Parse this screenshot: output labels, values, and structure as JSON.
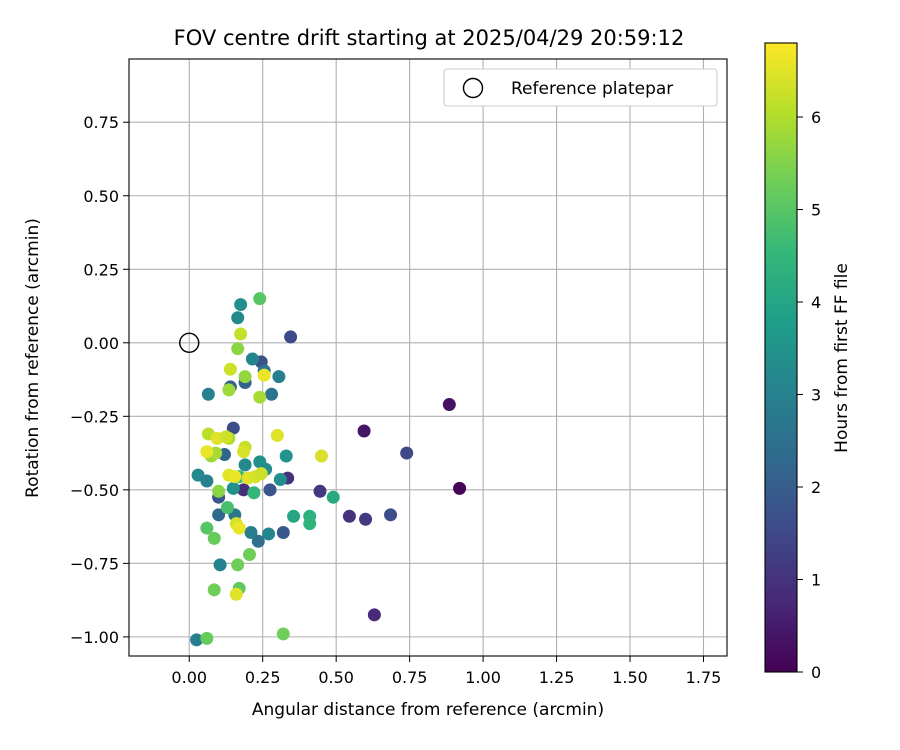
{
  "chart_data": {
    "type": "scatter",
    "title": "FOV centre drift starting at 2025/04/29 20:59:12",
    "xlabel": "Angular distance from reference (arcmin)",
    "ylabel": "Rotation from reference (arcmin)",
    "xlim": [
      -0.205,
      1.83
    ],
    "ylim": [
      -1.065,
      0.965
    ],
    "xticks": [
      0.0,
      0.25,
      0.5,
      0.75,
      1.0,
      1.25,
      1.5,
      1.75
    ],
    "xtick_labels": [
      "0.00",
      "0.25",
      "0.50",
      "0.75",
      "1.00",
      "1.25",
      "1.50",
      "1.75"
    ],
    "yticks": [
      0.75,
      0.5,
      0.25,
      0.0,
      -0.25,
      -0.5,
      -0.75,
      -1.0
    ],
    "ytick_labels": [
      "0.75",
      "0.50",
      "0.25",
      "0.00",
      "−0.25",
      "−0.50",
      "−0.75",
      "−1.00"
    ],
    "grid": true,
    "legend": {
      "placement": "top-right",
      "entries": [
        "Reference platepar"
      ]
    },
    "reference_point": {
      "x": 0.0,
      "y": 0.0,
      "marker": "open-circle"
    },
    "colorbar": {
      "label": "Hours from first FF file",
      "colormap": "viridis",
      "range": [
        0,
        6.8
      ],
      "ticks": [
        0,
        1,
        2,
        3,
        4,
        5,
        6
      ],
      "tick_labels": [
        "0",
        "1",
        "2",
        "3",
        "4",
        "5",
        "6"
      ]
    },
    "points": [
      {
        "x": 0.92,
        "y": -0.495,
        "c": 0.1
      },
      {
        "x": 0.885,
        "y": -0.21,
        "c": 0.3
      },
      {
        "x": 0.595,
        "y": -0.3,
        "c": 0.4
      },
      {
        "x": 0.63,
        "y": -0.925,
        "c": 0.8
      },
      {
        "x": 0.545,
        "y": -0.59,
        "c": 1.0
      },
      {
        "x": 0.6,
        "y": -0.6,
        "c": 1.2
      },
      {
        "x": 0.445,
        "y": -0.505,
        "c": 1.1
      },
      {
        "x": 0.74,
        "y": -0.375,
        "c": 1.5
      },
      {
        "x": 0.685,
        "y": -0.585,
        "c": 1.6
      },
      {
        "x": 0.345,
        "y": 0.02,
        "c": 1.5
      },
      {
        "x": 0.335,
        "y": -0.46,
        "c": 1.0
      },
      {
        "x": 0.185,
        "y": -0.5,
        "c": 0.9
      },
      {
        "x": 0.245,
        "y": -0.065,
        "c": 1.7
      },
      {
        "x": 0.15,
        "y": -0.29,
        "c": 1.6
      },
      {
        "x": 0.275,
        "y": -0.5,
        "c": 1.8
      },
      {
        "x": 0.32,
        "y": -0.645,
        "c": 1.9
      },
      {
        "x": 0.19,
        "y": -0.135,
        "c": 2.1
      },
      {
        "x": 0.14,
        "y": -0.15,
        "c": 2.0
      },
      {
        "x": 0.1,
        "y": -0.525,
        "c": 1.8
      },
      {
        "x": 0.1,
        "y": -0.585,
        "c": 2.3
      },
      {
        "x": 0.235,
        "y": -0.675,
        "c": 2.5
      },
      {
        "x": 0.12,
        "y": -0.38,
        "c": 2.2
      },
      {
        "x": 0.255,
        "y": -0.095,
        "c": 2.6
      },
      {
        "x": 0.28,
        "y": -0.175,
        "c": 2.6
      },
      {
        "x": 0.305,
        "y": -0.115,
        "c": 2.9
      },
      {
        "x": 0.065,
        "y": -0.175,
        "c": 3.0
      },
      {
        "x": 0.155,
        "y": -0.585,
        "c": 2.7
      },
      {
        "x": 0.21,
        "y": -0.645,
        "c": 2.9
      },
      {
        "x": 0.165,
        "y": 0.085,
        "c": 3.2
      },
      {
        "x": 0.175,
        "y": 0.13,
        "c": 3.4
      },
      {
        "x": 0.215,
        "y": -0.055,
        "c": 3.1
      },
      {
        "x": 0.27,
        "y": -0.65,
        "c": 3.1
      },
      {
        "x": 0.105,
        "y": -0.755,
        "c": 3.0
      },
      {
        "x": 0.025,
        "y": -1.01,
        "c": 2.9
      },
      {
        "x": 0.03,
        "y": -0.45,
        "c": 3.2
      },
      {
        "x": 0.06,
        "y": -0.47,
        "c": 3.0
      },
      {
        "x": 0.33,
        "y": -0.385,
        "c": 3.5
      },
      {
        "x": 0.31,
        "y": -0.465,
        "c": 3.3
      },
      {
        "x": 0.24,
        "y": -0.405,
        "c": 3.4
      },
      {
        "x": 0.15,
        "y": -0.495,
        "c": 3.4
      },
      {
        "x": 0.26,
        "y": -0.43,
        "c": 3.3
      },
      {
        "x": 0.19,
        "y": -0.415,
        "c": 3.2
      },
      {
        "x": 0.355,
        "y": -0.59,
        "c": 4.0
      },
      {
        "x": 0.41,
        "y": -0.59,
        "c": 4.3
      },
      {
        "x": 0.41,
        "y": -0.615,
        "c": 4.4
      },
      {
        "x": 0.49,
        "y": -0.525,
        "c": 4.1
      },
      {
        "x": 0.22,
        "y": -0.51,
        "c": 4.5
      },
      {
        "x": 0.17,
        "y": -0.455,
        "c": 4.6
      },
      {
        "x": 0.13,
        "y": -0.56,
        "c": 4.8
      },
      {
        "x": 0.06,
        "y": -0.63,
        "c": 5.0
      },
      {
        "x": 0.085,
        "y": -0.665,
        "c": 5.2
      },
      {
        "x": 0.165,
        "y": -0.755,
        "c": 5.3
      },
      {
        "x": 0.205,
        "y": -0.72,
        "c": 5.3
      },
      {
        "x": 0.17,
        "y": -0.835,
        "c": 5.1
      },
      {
        "x": 0.085,
        "y": -0.84,
        "c": 5.3
      },
      {
        "x": 0.06,
        "y": -1.005,
        "c": 5.2
      },
      {
        "x": 0.32,
        "y": -0.99,
        "c": 5.3
      },
      {
        "x": 0.24,
        "y": 0.15,
        "c": 5.0
      },
      {
        "x": 0.165,
        "y": -0.02,
        "c": 5.6
      },
      {
        "x": 0.19,
        "y": -0.115,
        "c": 5.7
      },
      {
        "x": 0.135,
        "y": -0.16,
        "c": 5.8
      },
      {
        "x": 0.24,
        "y": -0.185,
        "c": 5.9
      },
      {
        "x": 0.1,
        "y": -0.505,
        "c": 5.6
      },
      {
        "x": 0.075,
        "y": -0.385,
        "c": 5.8
      },
      {
        "x": 0.09,
        "y": -0.375,
        "c": 5.9
      },
      {
        "x": 0.135,
        "y": -0.325,
        "c": 6.0
      },
      {
        "x": 0.065,
        "y": -0.31,
        "c": 6.1
      },
      {
        "x": 0.175,
        "y": 0.03,
        "c": 6.2
      },
      {
        "x": 0.14,
        "y": -0.09,
        "c": 6.3
      },
      {
        "x": 0.19,
        "y": -0.355,
        "c": 6.2
      },
      {
        "x": 0.185,
        "y": -0.37,
        "c": 6.4
      },
      {
        "x": 0.095,
        "y": -0.325,
        "c": 6.5
      },
      {
        "x": 0.125,
        "y": -0.32,
        "c": 6.3
      },
      {
        "x": 0.06,
        "y": -0.37,
        "c": 6.6
      },
      {
        "x": 0.135,
        "y": -0.45,
        "c": 6.5
      },
      {
        "x": 0.155,
        "y": -0.455,
        "c": 6.6
      },
      {
        "x": 0.2,
        "y": -0.46,
        "c": 6.5
      },
      {
        "x": 0.225,
        "y": -0.455,
        "c": 6.4
      },
      {
        "x": 0.245,
        "y": -0.445,
        "c": 6.3
      },
      {
        "x": 0.16,
        "y": -0.615,
        "c": 6.4
      },
      {
        "x": 0.17,
        "y": -0.63,
        "c": 6.6
      },
      {
        "x": 0.16,
        "y": -0.855,
        "c": 6.5
      },
      {
        "x": 0.255,
        "y": -0.11,
        "c": 6.6
      },
      {
        "x": 0.3,
        "y": -0.315,
        "c": 6.5
      },
      {
        "x": 0.45,
        "y": -0.385,
        "c": 6.4
      }
    ]
  }
}
